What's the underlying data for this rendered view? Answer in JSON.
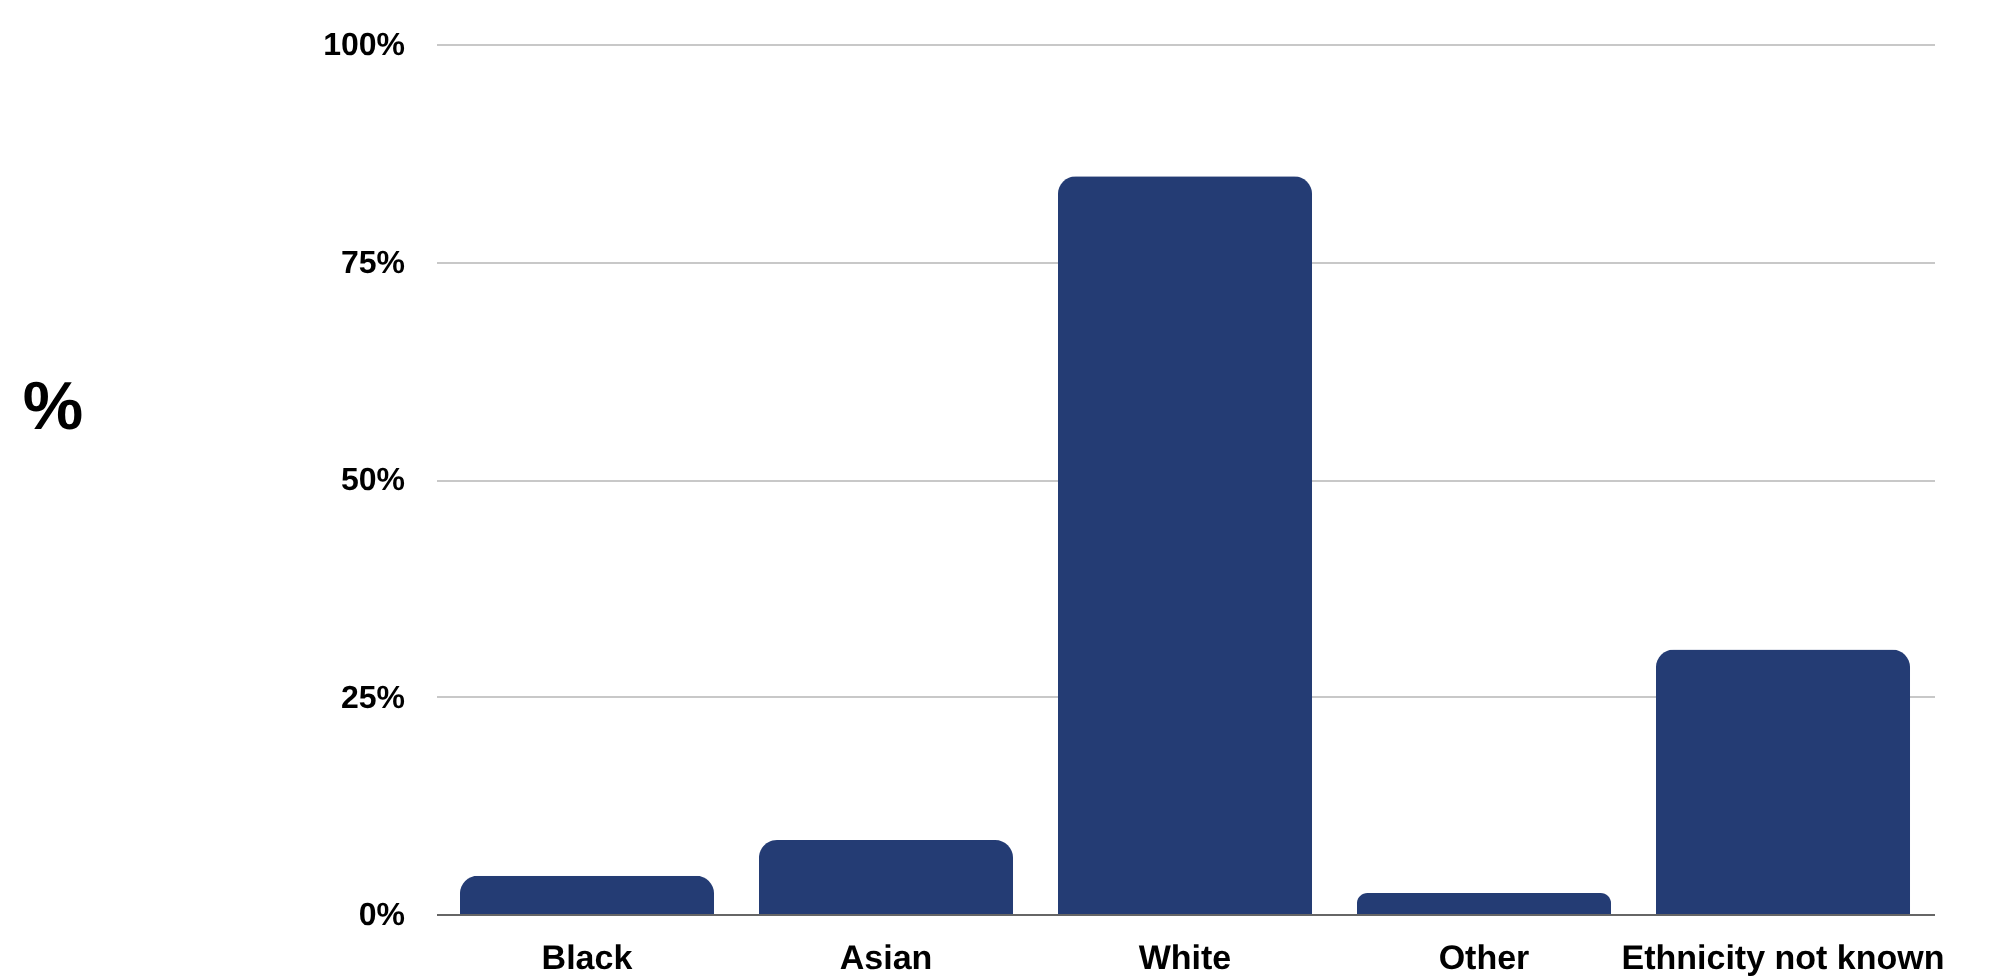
{
  "chart_data": {
    "type": "bar",
    "ylabel": "%",
    "categories": [
      "Black",
      "Asian",
      "White",
      "Other",
      "Ethnicity not known"
    ],
    "values": [
      4.4,
      8.5,
      84.8,
      2.4,
      30.4
    ],
    "color": "#243c74",
    "ylim": [
      0,
      100
    ],
    "yticks": [
      {
        "value": 0,
        "label": "0%"
      },
      {
        "value": 25,
        "label": "25%"
      },
      {
        "value": 50,
        "label": "50%"
      },
      {
        "value": 75,
        "label": "75%"
      },
      {
        "value": 100,
        "label": "100%"
      }
    ],
    "grid": "y"
  }
}
